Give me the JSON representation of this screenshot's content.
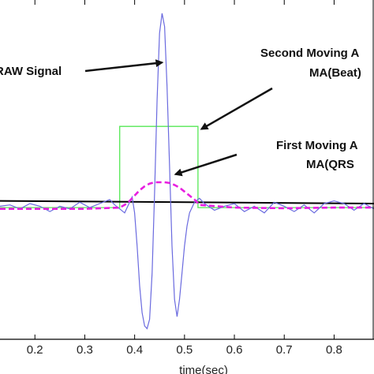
{
  "chart_data": {
    "type": "line",
    "xlabel": "time(sec)",
    "ylabel": "",
    "xlim": [
      0.13,
      0.88
    ],
    "ylim": [
      -1.0,
      1.55
    ],
    "grid": "off",
    "xticks": [
      0.2,
      0.3,
      0.4,
      0.5,
      0.6,
      0.7,
      0.8
    ],
    "series": [
      {
        "key": "raw",
        "color": "#6a6adf",
        "style": "solid",
        "x": [
          0.13,
          0.15,
          0.17,
          0.19,
          0.21,
          0.23,
          0.25,
          0.27,
          0.29,
          0.31,
          0.33,
          0.35,
          0.36,
          0.37,
          0.38,
          0.39,
          0.395,
          0.4,
          0.405,
          0.41,
          0.415,
          0.42,
          0.425,
          0.43,
          0.435,
          0.44,
          0.445,
          0.45,
          0.455,
          0.46,
          0.465,
          0.47,
          0.475,
          0.48,
          0.485,
          0.49,
          0.495,
          0.5,
          0.505,
          0.51,
          0.52,
          0.53,
          0.54,
          0.56,
          0.58,
          0.6,
          0.62,
          0.64,
          0.66,
          0.68,
          0.7,
          0.72,
          0.74,
          0.76,
          0.78,
          0.8,
          0.82,
          0.84,
          0.86,
          0.88
        ],
        "y": [
          0.0,
          0.01,
          -0.02,
          0.02,
          0.0,
          -0.04,
          0.0,
          -0.02,
          0.03,
          -0.01,
          0.02,
          0.05,
          0.01,
          -0.02,
          -0.05,
          0.03,
          0.07,
          -0.05,
          -0.3,
          -0.6,
          -0.8,
          -0.9,
          -0.92,
          -0.85,
          -0.5,
          0.1,
          0.8,
          1.3,
          1.45,
          1.35,
          0.9,
          0.3,
          -0.3,
          -0.7,
          -0.83,
          -0.7,
          -0.5,
          -0.3,
          -0.15,
          -0.05,
          0.03,
          0.06,
          0.02,
          -0.03,
          0.0,
          0.02,
          -0.04,
          0.0,
          -0.05,
          0.03,
          0.0,
          -0.04,
          0.01,
          -0.05,
          0.02,
          0.04,
          0.02,
          -0.03,
          0.02,
          -0.02
        ]
      },
      {
        "key": "ma_qrs",
        "color": "#e81fe0",
        "style": "dashed",
        "x": [
          0.13,
          0.3,
          0.37,
          0.38,
          0.39,
          0.4,
          0.41,
          0.42,
          0.43,
          0.44,
          0.45,
          0.46,
          0.47,
          0.48,
          0.49,
          0.5,
          0.51,
          0.52,
          0.53,
          0.6,
          0.7,
          0.8,
          0.88
        ],
        "y": [
          -0.02,
          -0.02,
          -0.01,
          0.01,
          0.04,
          0.08,
          0.12,
          0.15,
          0.17,
          0.18,
          0.18,
          0.18,
          0.175,
          0.16,
          0.14,
          0.11,
          0.08,
          0.05,
          0.01,
          -0.01,
          -0.015,
          -0.01,
          -0.01
        ]
      },
      {
        "key": "ma_beat",
        "color": "#55e855",
        "style": "solid",
        "x": [
          0.13,
          0.37,
          0.37,
          0.527,
          0.527,
          0.88
        ],
        "y": [
          -0.01,
          -0.01,
          0.6,
          0.6,
          -0.01,
          -0.01
        ]
      },
      {
        "key": "threshold",
        "color": "#000000",
        "style": "solid-thick",
        "x": [
          0.13,
          0.88
        ],
        "y": [
          0.04,
          0.02
        ]
      }
    ],
    "annotations": [
      {
        "key": "raw",
        "text": "RAW Signal",
        "arrow_to": [
          0.455,
          1.08
        ]
      },
      {
        "key": "second",
        "text": "Second Moving A",
        "text2": "MA(Beat)",
        "arrow_to": [
          0.534,
          0.58
        ]
      },
      {
        "key": "first",
        "text": "First Moving A",
        "text2": "MA(QRS",
        "arrow_to": [
          0.482,
          0.24
        ]
      }
    ]
  }
}
